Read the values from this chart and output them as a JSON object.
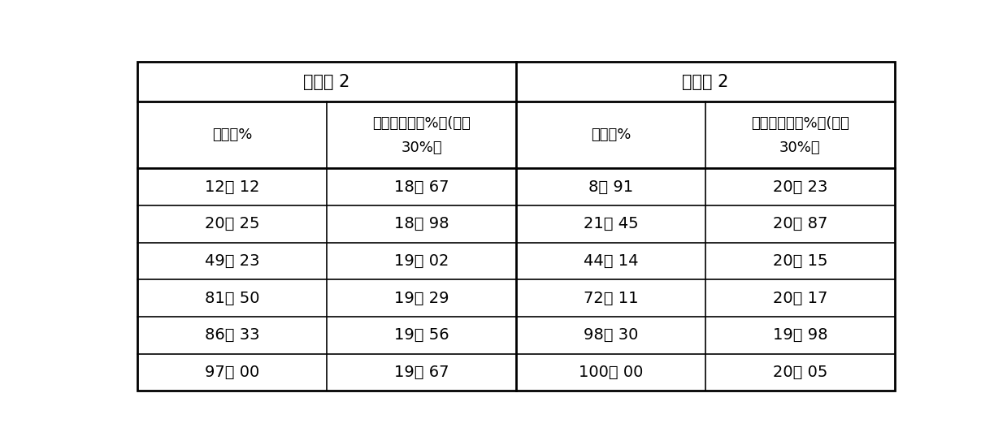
{
  "title_left": "对比例 2",
  "title_right": "实施例 2",
  "col_headers_line1": [
    "转化率%",
    "苯乙烯含量（%）(设値",
    "转化率%",
    "苯乙烯含量（%）(设値"
  ],
  "col_headers_line2": [
    "",
    "30%）",
    "",
    "30%）"
  ],
  "rows": [
    [
      "12． 12",
      "18． 67",
      "8． 91",
      "20． 23"
    ],
    [
      "20． 25",
      "18． 98",
      "21． 45",
      "20． 87"
    ],
    [
      "49． 23",
      "19． 02",
      "44． 14",
      "20． 15"
    ],
    [
      "81． 50",
      "19． 29",
      "72． 11",
      "20． 17"
    ],
    [
      "86． 33",
      "19． 56",
      "98． 30",
      "19． 98"
    ],
    [
      "97． 00",
      "19． 67",
      "100． 00",
      "20． 05"
    ]
  ],
  "bg_color": "#ffffff",
  "border_color": "#000000",
  "text_color": "#000000",
  "font_size": 14,
  "header_font_size": 15
}
